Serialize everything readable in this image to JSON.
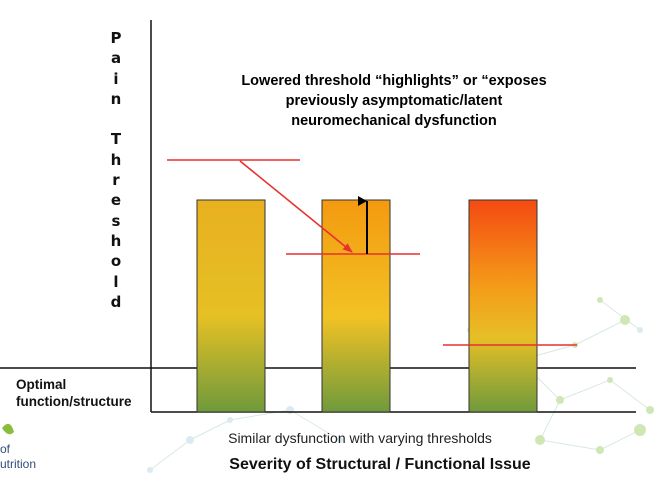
{
  "diagram": {
    "y_axis_label_letters": [
      "P",
      "a",
      "i",
      "n",
      "",
      "T",
      "h",
      "r",
      "e",
      "s",
      "h",
      "o",
      "l",
      "d"
    ],
    "annotation_lines": [
      "Lowered threshold “highlights” or “exposes",
      "previously asymptomatic/latent",
      "neuromechanical dysfunction"
    ],
    "baseline_label_lines": [
      "Optimal",
      "function/structure"
    ],
    "sub_caption": "Similar dysfunction with varying thresholds",
    "x_axis_label": "Severity of Structural / Functional Issue",
    "logo_fragment_lines": [
      "of",
      "utrition"
    ],
    "colors": {
      "threshold_line": "#e8312f",
      "bar_top_1": "#e9b020",
      "bar_top_2": "#f39a10",
      "bar_top_3": "#f44a12",
      "bar_bottom": "#6f9a3c",
      "axis": "#111111"
    }
  }
}
